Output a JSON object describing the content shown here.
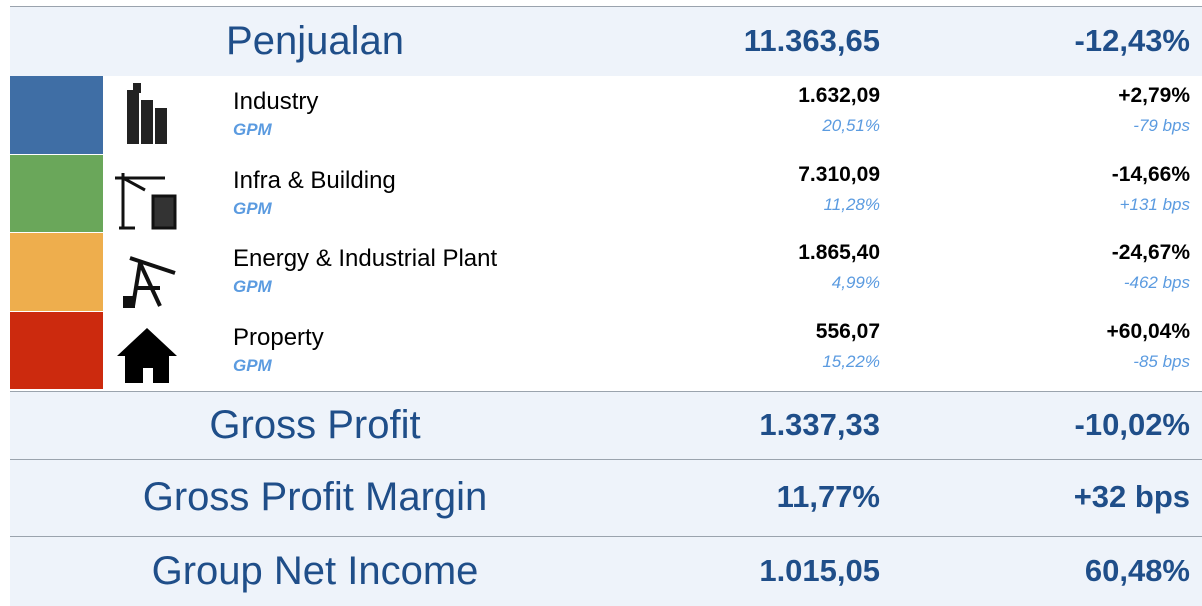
{
  "header": {
    "title": "Penjualan",
    "value": "11.363,65",
    "change": "-12,43%"
  },
  "segments": [
    {
      "name": "Industry",
      "value": "1.632,09",
      "change": "+2,79%",
      "metric": "GPM",
      "metric_value": "20,51%",
      "metric_change": "-79 bps",
      "color": "#3f6ea5"
    },
    {
      "name": "Infra & Building",
      "value": "7.310,09",
      "change": "-14,66%",
      "metric": "GPM",
      "metric_value": "11,28%",
      "metric_change": "+131 bps",
      "color": "#6aa75a"
    },
    {
      "name": "Energy & Industrial Plant",
      "value": "1.865,40",
      "change": "-24,67%",
      "metric": "GPM",
      "metric_value": "4,99%",
      "metric_change": "-462 bps",
      "color": "#eeae4d"
    },
    {
      "name": "Property",
      "value": "556,07",
      "change": "+60,04%",
      "metric": "GPM",
      "metric_value": "15,22%",
      "metric_change": "-85 bps",
      "color": "#cc2a0e"
    }
  ],
  "summary": [
    {
      "label": "Gross Profit",
      "value": "1.337,33",
      "change": "-10,02%"
    },
    {
      "label": "Gross Profit Margin",
      "value": "11,77%",
      "change": "+32 bps"
    },
    {
      "label": "Group Net Income",
      "value": "1.015,05",
      "change": "60,48%"
    }
  ]
}
